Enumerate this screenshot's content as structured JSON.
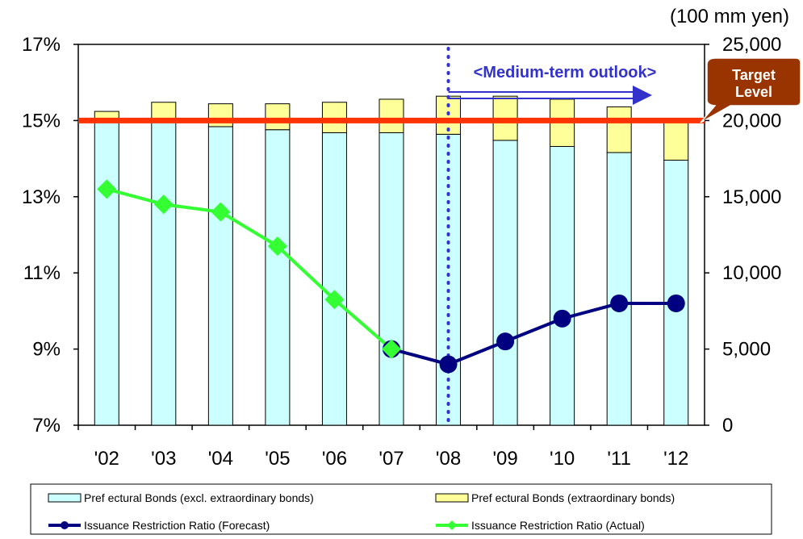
{
  "chart_data": {
    "type": "bar",
    "categories": [
      "'02",
      "'03",
      "'04",
      "'05",
      "'06",
      "'07",
      "'08",
      "'09",
      "'10",
      "'11",
      "'12"
    ],
    "right_axis_unit": "(100 mm yen)",
    "left_axis": {
      "range": [
        7,
        17
      ],
      "ticks": [
        "7%",
        "9%",
        "11%",
        "13%",
        "15%",
        "17%"
      ]
    },
    "right_axis": {
      "range": [
        0,
        25000
      ],
      "ticks": [
        "0",
        "5,000",
        "10,000",
        "15,000",
        "20,000",
        "25,000"
      ]
    },
    "series": [
      {
        "name": "Pref ectural Bonds (excl. extraordinary bonds)",
        "kind": "stacked-bar",
        "color": "#ccffff",
        "values": [
          20000,
          20000,
          19600,
          19400,
          19200,
          19200,
          19100,
          18700,
          18300,
          17900,
          17400
        ]
      },
      {
        "name": "Pref ectural Bonds (extraordinary bonds)",
        "kind": "stacked-bar",
        "color": "#ffff99",
        "values": [
          600,
          1200,
          1500,
          1700,
          2000,
          2200,
          2500,
          2900,
          3100,
          3000,
          2500
        ]
      },
      {
        "name": "Issuance Restriction Ratio (Forecast)",
        "kind": "line",
        "color": "#000080",
        "values": [
          null,
          null,
          null,
          null,
          null,
          9.0,
          8.6,
          9.2,
          9.8,
          10.2,
          10.2
        ]
      },
      {
        "name": "Issuance Restriction Ratio (Actual)",
        "kind": "line",
        "color": "#33ff33",
        "values": [
          13.2,
          12.8,
          12.6,
          11.7,
          10.3,
          9.0,
          null,
          null,
          null,
          null,
          null
        ]
      }
    ],
    "target_level": {
      "label_line1": "Target",
      "label_line2": "Level",
      "value": 20000,
      "color": "#ff3300",
      "callout_color": "#993300"
    },
    "outlook": {
      "label": "<Medium-term outlook>",
      "start_category": "'08",
      "color": "#3333cc"
    },
    "legend_position": "bottom",
    "grid": false
  }
}
